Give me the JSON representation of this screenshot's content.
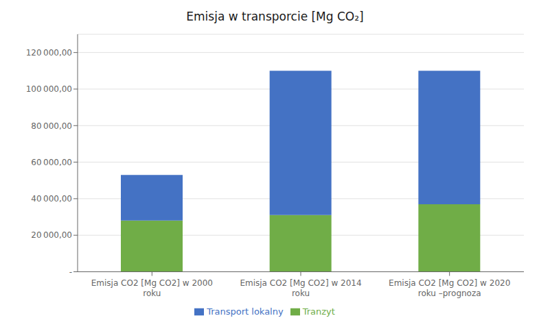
{
  "chart_data": {
    "type": "bar",
    "title": "Emisja w transporcie [Mg CO₂]",
    "categories": [
      "Emisja CO2 [Mg CO2] w 2000\nroku",
      "Emisja CO2 [Mg CO2] w 2014\nroku",
      "Emisja CO2 [Mg CO2] w 2020\nroku –prognoza"
    ],
    "series": [
      {
        "name": "Tranzyt",
        "color": "#70ad47",
        "values": [
          28000,
          31000,
          37000
        ]
      },
      {
        "name": "Transport lokalny",
        "color": "#4472c4",
        "values": [
          25000,
          79000,
          73000
        ]
      }
    ],
    "stacked": true,
    "ylim": [
      0,
      130000
    ],
    "yticks": [
      {
        "value": 0,
        "label": "-"
      },
      {
        "value": 20000,
        "label": "20 000,00"
      },
      {
        "value": 40000,
        "label": "40 000,00"
      },
      {
        "value": 60000,
        "label": "60 000,00"
      },
      {
        "value": 80000,
        "label": "80 000,00"
      },
      {
        "value": 100000,
        "label": "100 000,00"
      },
      {
        "value": 120000,
        "label": "120 000,00"
      }
    ],
    "grid": true,
    "legend": "bottom"
  }
}
